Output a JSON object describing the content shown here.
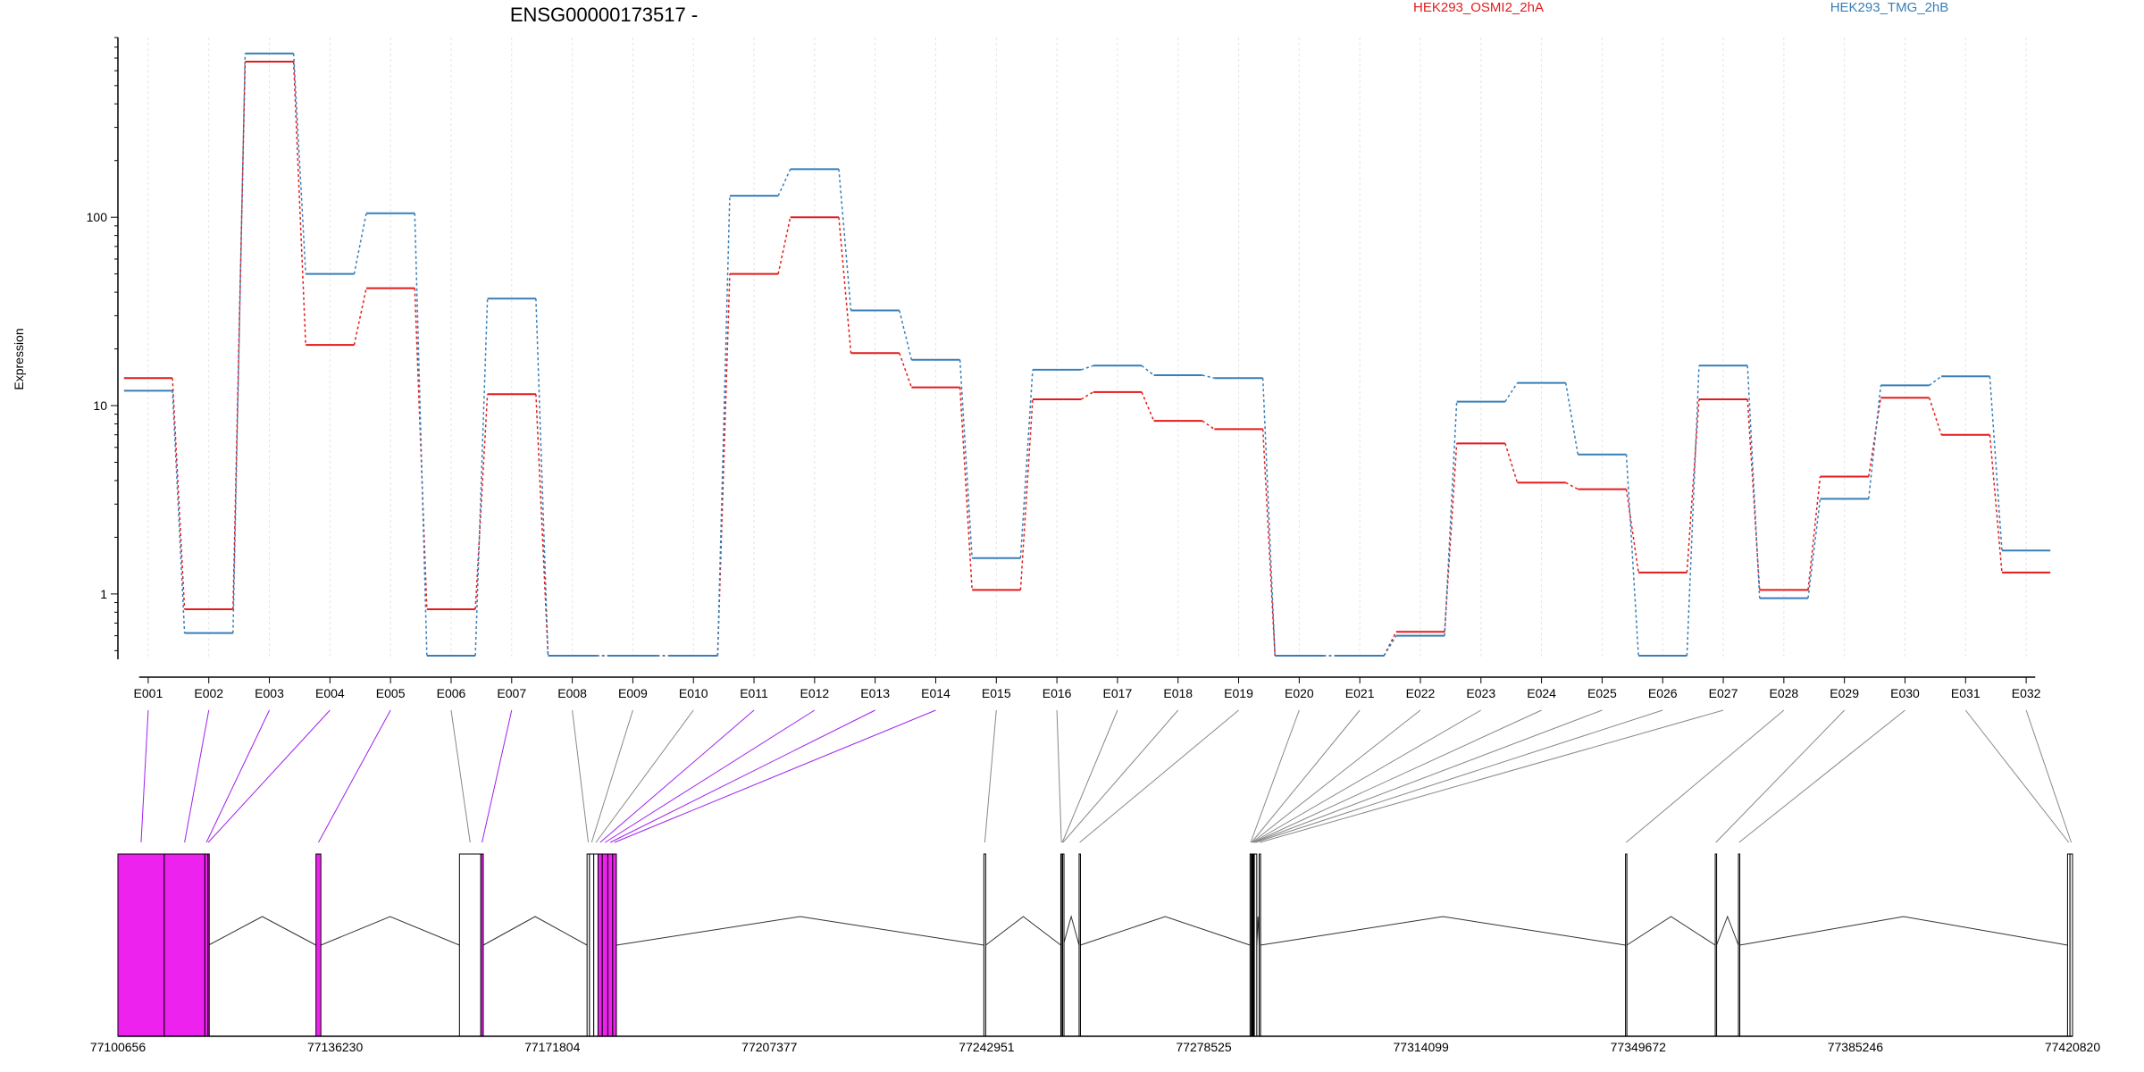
{
  "chart_data": {
    "type": "line",
    "title": "ENSG00000173517 -",
    "ylabel": "Expression",
    "xlabel": "",
    "y_scale": "log",
    "ylim": [
      0.45,
      900
    ],
    "y_ticks": [
      1,
      10,
      100
    ],
    "y_tick_labels": [
      "1",
      "10",
      "100"
    ],
    "categories": [
      "E001",
      "E002",
      "E003",
      "E004",
      "E005",
      "E006",
      "E007",
      "E008",
      "E009",
      "E010",
      "E011",
      "E012",
      "E013",
      "E014",
      "E015",
      "E016",
      "E017",
      "E018",
      "E019",
      "E020",
      "E021",
      "E022",
      "E023",
      "E024",
      "E025",
      "E026",
      "E027",
      "E028",
      "E029",
      "E030",
      "E031",
      "E032"
    ],
    "series": [
      {
        "name": "HEK293_OSMI2_2hA",
        "color": "#e41a1c",
        "values": [
          14,
          0.83,
          670,
          21,
          42,
          0.83,
          11.5,
          0.47,
          0.47,
          0.47,
          50,
          100,
          19,
          12.5,
          1.05,
          10.8,
          11.8,
          8.3,
          7.5,
          0.47,
          0.47,
          0.63,
          6.3,
          3.9,
          3.6,
          1.3,
          10.8,
          1.05,
          4.2,
          11,
          7,
          1.3
        ]
      },
      {
        "name": "HEK293_TMG_2hB",
        "color": "#377eb8",
        "values": [
          12,
          0.62,
          740,
          50,
          105,
          0.47,
          37,
          0.47,
          0.47,
          0.47,
          130,
          180,
          32,
          17.5,
          1.55,
          15.5,
          16.3,
          14.5,
          14,
          0.47,
          0.47,
          0.6,
          10.5,
          13.2,
          5.5,
          0.47,
          16.3,
          0.95,
          3.2,
          12.8,
          14.3,
          1.7
        ]
      }
    ],
    "legend": {
      "position": "top",
      "entries": [
        "HEK293_OSMI2_2hA",
        "HEK293_TMG_2hB"
      ]
    },
    "vertical_gridlines": true,
    "gene_model": {
      "coordinate_range": [
        77100656,
        77420820
      ],
      "coordinate_ticks": [
        77100656,
        77136230,
        77171804,
        77207377,
        77242951,
        77278525,
        77314099,
        77349672,
        77385246,
        77420820
      ],
      "coordinate_tick_labels": [
        "77100656",
        "77136230",
        "77171804",
        "77207377",
        "77242951",
        "77278525",
        "77314099",
        "77349672",
        "77385246",
        "77420820"
      ],
      "highlight_color": "#ee22ee",
      "exons": [
        {
          "id": "E001",
          "start": 77100656,
          "end": 77108250,
          "highlight": true
        },
        {
          "id": "E002",
          "start": 77108250,
          "end": 77114900,
          "highlight": true
        },
        {
          "id": "E003",
          "start": 77114900,
          "end": 77115400,
          "highlight": true
        },
        {
          "id": "E004",
          "start": 77115400,
          "end": 77115500,
          "highlight": true
        },
        {
          "id": "E005",
          "start": 77133100,
          "end": 77133900,
          "highlight": true
        },
        {
          "id": "E006",
          "start": 77156600,
          "end": 77160100,
          "highlight": false
        },
        {
          "id": "E007",
          "start": 77160100,
          "end": 77160500,
          "highlight": true
        },
        {
          "id": "E008",
          "start": 77177500,
          "end": 77177900,
          "highlight": false
        },
        {
          "id": "E009",
          "start": 77177900,
          "end": 77178600,
          "highlight": false
        },
        {
          "id": "E010",
          "start": 77178600,
          "end": 77179300,
          "highlight": false
        },
        {
          "id": "E011",
          "start": 77179300,
          "end": 77180000,
          "highlight": true
        },
        {
          "id": "E012",
          "start": 77180000,
          "end": 77180900,
          "highlight": true
        },
        {
          "id": "E013",
          "start": 77180900,
          "end": 77181700,
          "highlight": true
        },
        {
          "id": "E014",
          "start": 77181700,
          "end": 77182300,
          "highlight": true
        },
        {
          "id": "E015",
          "start": 77242500,
          "end": 77242800,
          "highlight": false
        },
        {
          "id": "E016",
          "start": 77255100,
          "end": 77255300,
          "highlight": false
        },
        {
          "id": "E017",
          "start": 77255300,
          "end": 77255400,
          "highlight": false
        },
        {
          "id": "E018",
          "start": 77255400,
          "end": 77255500,
          "highlight": false
        },
        {
          "id": "E019",
          "start": 77258100,
          "end": 77258300,
          "highlight": false
        },
        {
          "id": "E020",
          "start": 77286100,
          "end": 77286300,
          "highlight": false
        },
        {
          "id": "E021",
          "start": 77286300,
          "end": 77286400,
          "highlight": false
        },
        {
          "id": "E022",
          "start": 77286400,
          "end": 77286500,
          "highlight": false
        },
        {
          "id": "E023",
          "start": 77286500,
          "end": 77286600,
          "highlight": false
        },
        {
          "id": "E024",
          "start": 77286600,
          "end": 77286700,
          "highlight": false
        },
        {
          "id": "E025",
          "start": 77286700,
          "end": 77286800,
          "highlight": false
        },
        {
          "id": "E026",
          "start": 77286800,
          "end": 77287200,
          "highlight": false
        },
        {
          "id": "E027",
          "start": 77287600,
          "end": 77287800,
          "highlight": false
        },
        {
          "id": "E028",
          "start": 77347600,
          "end": 77347800,
          "highlight": false
        },
        {
          "id": "E029",
          "start": 77362300,
          "end": 77362500,
          "highlight": false
        },
        {
          "id": "E030",
          "start": 77366100,
          "end": 77366300,
          "highlight": false
        },
        {
          "id": "E031",
          "start": 77420000,
          "end": 77420400,
          "highlight": false
        },
        {
          "id": "E032",
          "start": 77420400,
          "end": 77420820,
          "highlight": false
        }
      ],
      "introns": [
        [
          77115500,
          77133100
        ],
        [
          77133900,
          77156600
        ],
        [
          77160500,
          77177500
        ],
        [
          77182300,
          77242500
        ],
        [
          77242800,
          77255100
        ],
        [
          77255500,
          77258100
        ],
        [
          77258300,
          77286100
        ],
        [
          77287200,
          77287600
        ],
        [
          77287800,
          77347600
        ],
        [
          77347800,
          77362300
        ],
        [
          77362500,
          77366100
        ],
        [
          77366300,
          77420000
        ]
      ]
    }
  }
}
